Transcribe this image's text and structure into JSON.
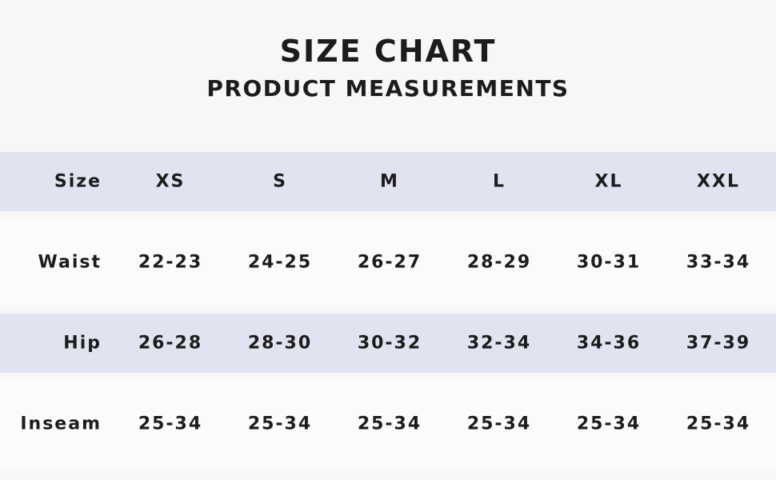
{
  "header": {
    "title": "SIZE CHART",
    "subtitle": "PRODUCT MEASUREMENTS"
  },
  "table": {
    "header": [
      "Size",
      "XS",
      "S",
      "M",
      "L",
      "XL",
      "XXL"
    ],
    "rows": [
      [
        "Waist",
        "22-23",
        "24-25",
        "26-27",
        "28-29",
        "30-31",
        "33-34"
      ],
      [
        "Hip",
        "26-28",
        "28-30",
        "30-32",
        "32-34",
        "34-36",
        "37-39"
      ],
      [
        "Inseam",
        "25-34",
        "25-34",
        "25-34",
        "25-34",
        "25-34",
        "25-34"
      ]
    ]
  }
}
